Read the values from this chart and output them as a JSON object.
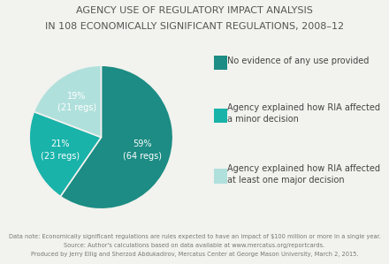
{
  "title_line1": "AGENCY USE OF REGULATORY IMPACT ANALYSIS",
  "title_line2": "IN 108 ECONOMICALLY SIGNIFICANT REGULATIONS, 2008–12",
  "slices": [
    59,
    21,
    19
  ],
  "labels": [
    "59%\n(64 regs)",
    "21%\n(23 regs)",
    "19%\n(21 regs)"
  ],
  "colors": [
    "#1c8c84",
    "#19b3aa",
    "#b0e0dc"
  ],
  "legend_labels": [
    "No evidence of any use provided",
    "Agency explained how RIA affected\na minor decision",
    "Agency explained how RIA affected\nat least one major decision"
  ],
  "footnote1": "Data note: Economically significant regulations are rules expected to have an impact of $100 million or more in a single year.",
  "footnote2": "Source: Author's calculations based on data available at www.mercatus.org/reportcards.",
  "footnote3": "Produced by Jerry Ellig and Sherzod Abdukadirov, Mercatus Center at George Mason University, March 2, 2015.",
  "background_color": "#f2f2ee",
  "start_angle": 90,
  "label_fontsize": 7.0,
  "title_fontsize": 8.0,
  "legend_fontsize": 7.0,
  "footnote_fontsize": 4.8
}
